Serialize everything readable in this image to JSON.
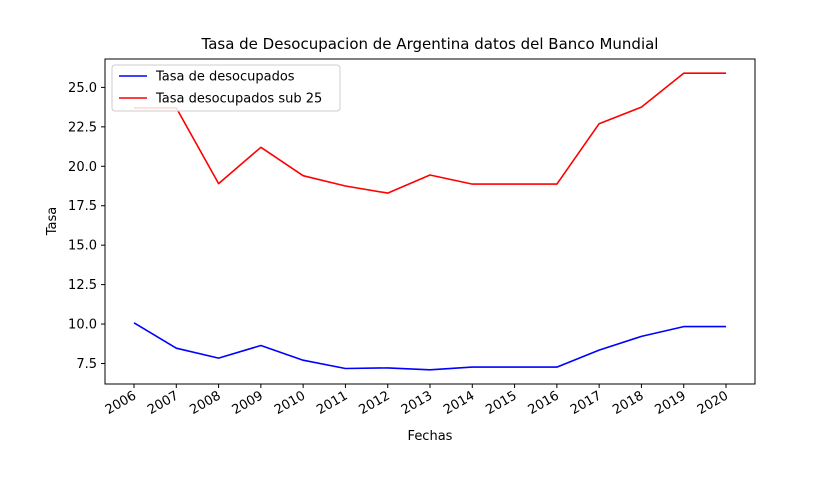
{
  "chart_data": {
    "type": "line",
    "title": "Tasa de Desocupacion de Argentina datos del Banco Mundial",
    "xlabel": "Fechas",
    "ylabel": "Tasa",
    "categories": [
      "2006",
      "2007",
      "2008",
      "2009",
      "2010",
      "2011",
      "2012",
      "2013",
      "2014",
      "2015",
      "2016",
      "2017",
      "2018",
      "2019",
      "2020"
    ],
    "yticks": [
      "7.5",
      "10.0",
      "12.5",
      "15.0",
      "17.5",
      "20.0",
      "22.5",
      "25.0"
    ],
    "ylim": [
      6.2,
      26.8
    ],
    "grid": false,
    "legend_position": "upper-left",
    "series": [
      {
        "name": "Tasa de desocupados",
        "color": "#0000ff",
        "values": [
          10.08,
          8.47,
          7.84,
          8.64,
          7.71,
          7.18,
          7.22,
          7.1,
          7.27,
          7.27,
          7.27,
          8.35,
          9.22,
          9.84,
          9.84
        ]
      },
      {
        "name": "Tasa desocupados sub 25",
        "color": "#ff0000",
        "values": [
          23.7,
          23.7,
          18.9,
          21.2,
          19.4,
          18.75,
          18.3,
          19.45,
          18.87,
          18.87,
          18.87,
          22.7,
          23.75,
          25.9,
          25.9
        ]
      }
    ]
  }
}
